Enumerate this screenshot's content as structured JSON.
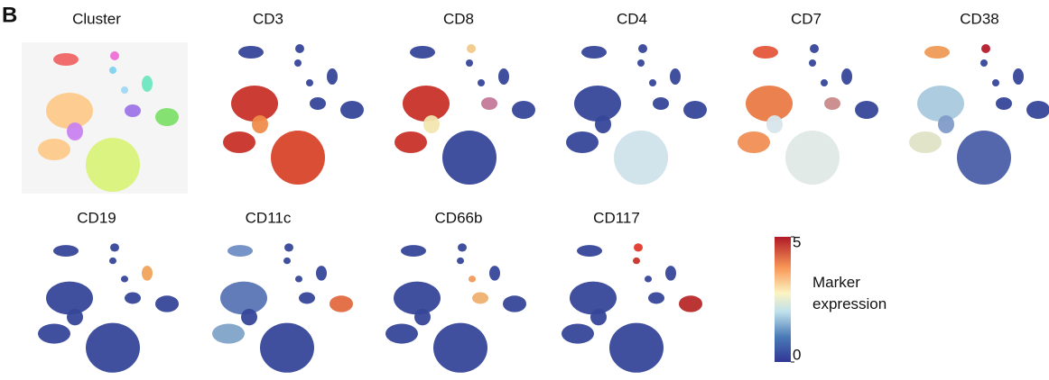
{
  "panel_label": "B",
  "plots": [
    {
      "title": "Cluster"
    },
    {
      "title": "CD3"
    },
    {
      "title": "CD8"
    },
    {
      "title": "CD4"
    },
    {
      "title": "CD7"
    },
    {
      "title": "CD38"
    },
    {
      "title": "CD19"
    },
    {
      "title": "CD11c"
    },
    {
      "title": "CD66b"
    },
    {
      "title": "CD117"
    }
  ],
  "colorbar": {
    "label": "Marker expression",
    "lim": [
      0,
      5
    ],
    "ticks": [
      0,
      5
    ]
  }
}
